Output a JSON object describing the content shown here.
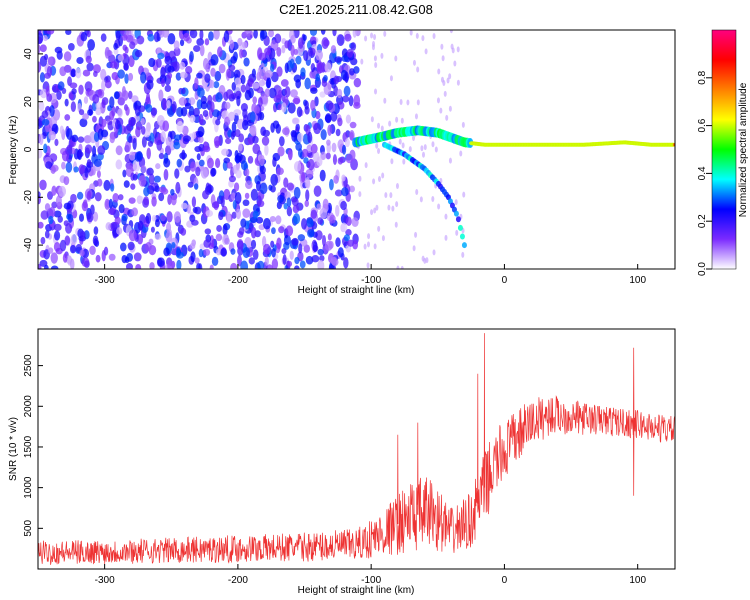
{
  "title": "C2E1.2025.211.08.42.G08",
  "chart_data": [
    {
      "type": "heatmap",
      "xlabel": "Height of straight line (km)",
      "ylabel": "Frequency (Hz)",
      "xlim": [
        -350,
        128
      ],
      "ylim": [
        -50,
        50
      ],
      "x_ticks": [
        -300,
        -200,
        -100,
        0,
        100
      ],
      "y_ticks": [
        -40,
        -20,
        0,
        20,
        40
      ],
      "grid": false,
      "colorbar": {
        "label": "Normalized spectral amplitude",
        "range": [
          0,
          1
        ],
        "ticks": [
          0.0,
          0.2,
          0.4,
          0.6,
          0.8
        ],
        "colors": [
          "#ffffff",
          "#7b2bff",
          "#0000ff",
          "#00ffff",
          "#00ff00",
          "#ffff00",
          "#ff8000",
          "#ff0000",
          "#ff007f"
        ]
      },
      "features": [
        {
          "name": "noise",
          "x_range": [
            -350,
            -110
          ],
          "freq_range": [
            -50,
            50
          ],
          "amplitude": 0.15
        },
        {
          "name": "carrier",
          "points": [
            [
              -112,
              3
            ],
            [
              -95,
              5
            ],
            [
              -80,
              7
            ],
            [
              -65,
              8
            ],
            [
              -50,
              7
            ],
            [
              -40,
              5
            ],
            [
              -30,
              3
            ],
            [
              -15,
              2
            ],
            [
              0,
              2
            ],
            [
              20,
              2
            ],
            [
              60,
              2
            ],
            [
              90,
              3
            ],
            [
              110,
              2
            ],
            [
              128,
              2
            ]
          ],
          "amplitude": 0.8
        },
        {
          "name": "lower branch",
          "points": [
            [
              -90,
              2
            ],
            [
              -75,
              -2
            ],
            [
              -60,
              -8
            ],
            [
              -50,
              -14
            ],
            [
              -42,
              -20
            ],
            [
              -35,
              -28
            ],
            [
              -30,
              -40
            ]
          ],
          "amplitude": 0.35
        }
      ]
    },
    {
      "type": "line",
      "xlabel": "Height of straight line (km)",
      "ylabel": "SNR (10 * v/v)",
      "xlim": [
        -350,
        128
      ],
      "ylim": [
        0,
        2950
      ],
      "x_ticks": [
        -300,
        -200,
        -100,
        0,
        100
      ],
      "y_ticks": [
        500,
        1000,
        1500,
        2000,
        2500
      ],
      "grid": false,
      "color": "#ee3333",
      "envelope": {
        "x": [
          -350,
          -300,
          -250,
          -200,
          -150,
          -110,
          -90,
          -70,
          -55,
          -40,
          -25,
          -15,
          -5,
          5,
          20,
          35,
          60,
          90,
          110,
          128
        ],
        "y": [
          200,
          210,
          230,
          250,
          270,
          300,
          450,
          650,
          700,
          450,
          600,
          1000,
          1350,
          1550,
          1800,
          1900,
          1850,
          1800,
          1750,
          1700
        ],
        "spread": [
          150,
          150,
          160,
          170,
          180,
          200,
          300,
          450,
          450,
          300,
          350,
          450,
          400,
          350,
          300,
          250,
          200,
          180,
          180,
          180
        ]
      },
      "spikes": [
        [
          -15,
          2900
        ],
        [
          -20,
          2400
        ],
        [
          97,
          2720
        ],
        [
          97,
          900
        ],
        [
          -65,
          1800
        ],
        [
          -80,
          1650
        ]
      ]
    }
  ]
}
